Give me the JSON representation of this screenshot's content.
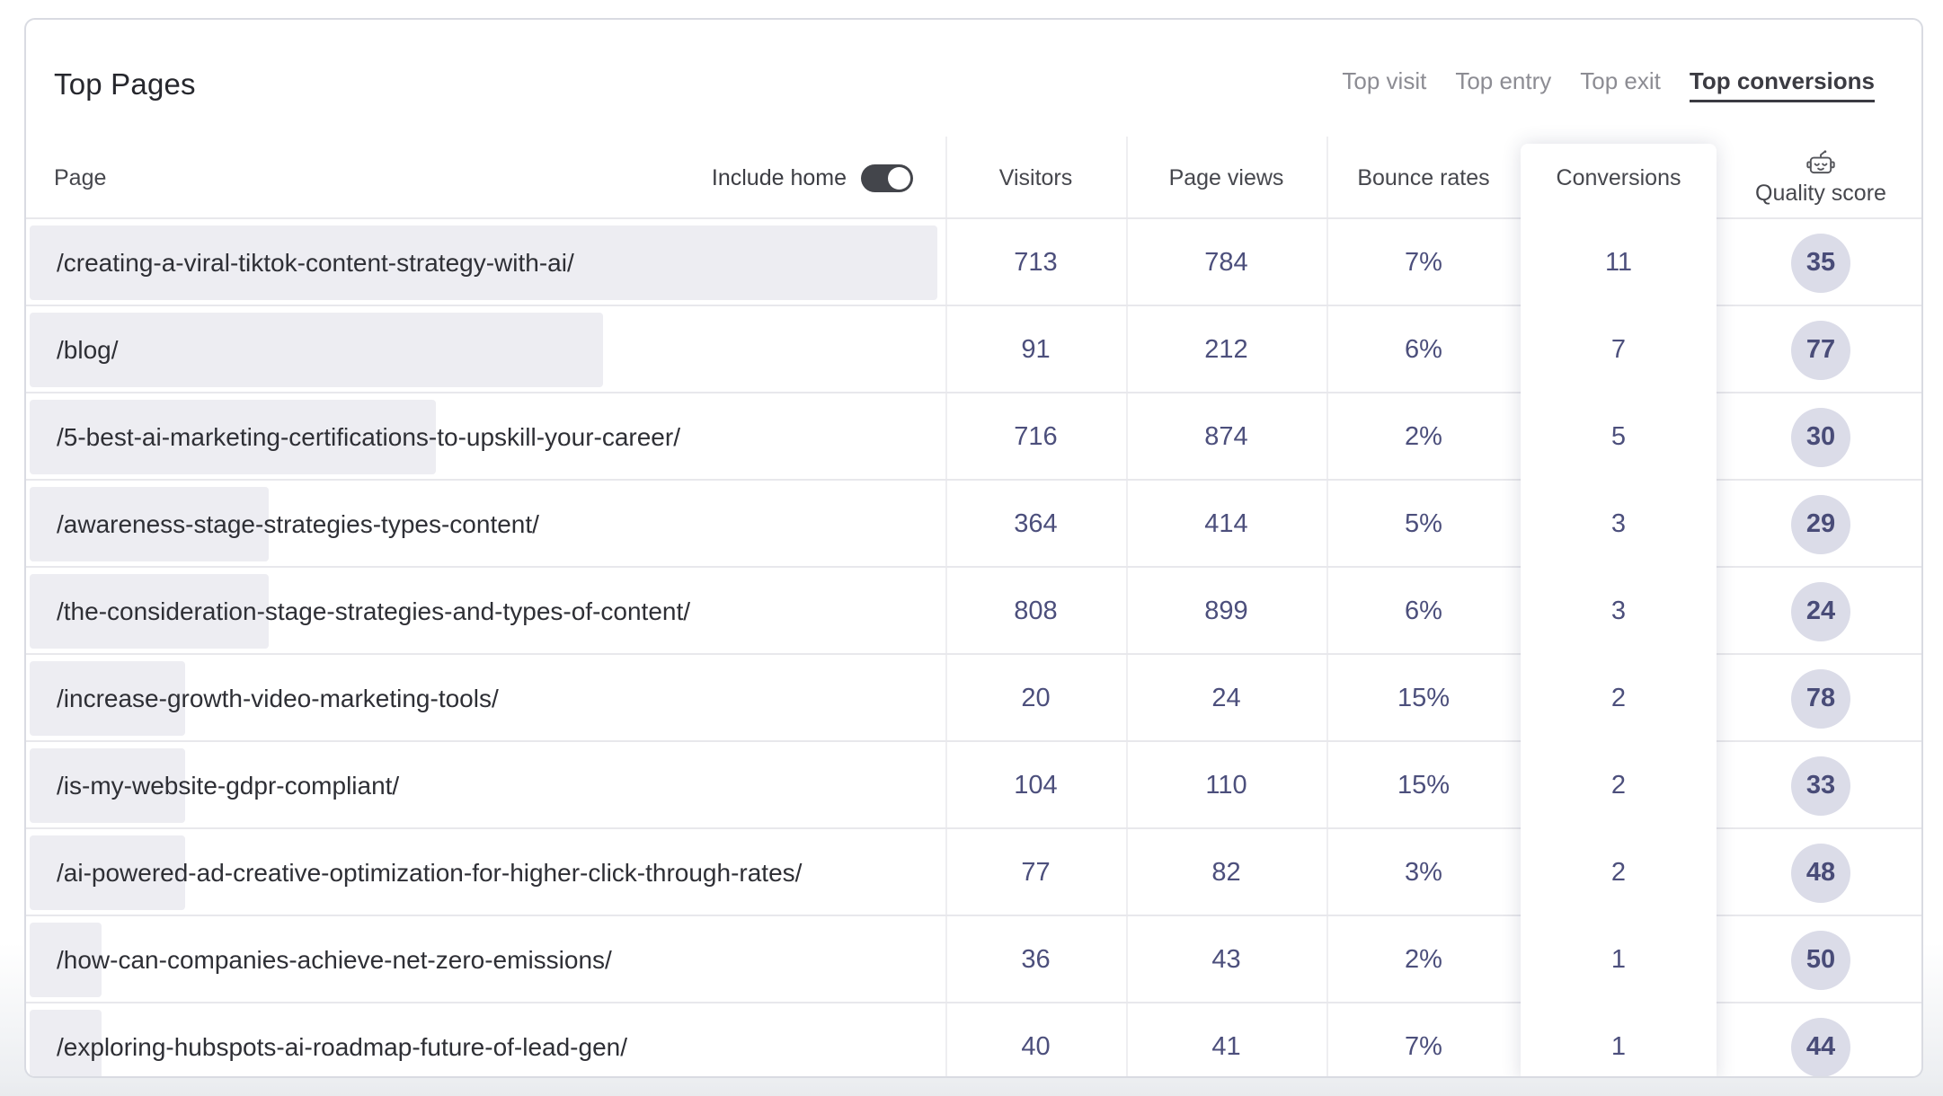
{
  "header": {
    "title": "Top Pages",
    "tabs": [
      {
        "label": "Top visit",
        "active": false
      },
      {
        "label": "Top entry",
        "active": false
      },
      {
        "label": "Top exit",
        "active": false
      },
      {
        "label": "Top conversions",
        "active": true
      }
    ]
  },
  "controls": {
    "include_home_label": "Include home",
    "include_home_on": true
  },
  "table": {
    "columns": [
      "Page",
      "Visitors",
      "Page views",
      "Bounce rates",
      "Conversions",
      "Quality score"
    ],
    "highlighted_column": "Conversions",
    "quality_icon": "robot-icon",
    "rows": [
      {
        "page": "/creating-a-viral-tiktok-content-strategy-with-ai/",
        "visitors": 713,
        "page_views": 784,
        "bounce_rate": "7%",
        "conversions": 11,
        "quality_score": 35
      },
      {
        "page": "/blog/",
        "visitors": 91,
        "page_views": 212,
        "bounce_rate": "6%",
        "conversions": 7,
        "quality_score": 77
      },
      {
        "page": "/5-best-ai-marketing-certifications-to-upskill-your-career/",
        "visitors": 716,
        "page_views": 874,
        "bounce_rate": "2%",
        "conversions": 5,
        "quality_score": 30
      },
      {
        "page": "/awareness-stage-strategies-types-content/",
        "visitors": 364,
        "page_views": 414,
        "bounce_rate": "5%",
        "conversions": 3,
        "quality_score": 29
      },
      {
        "page": "/the-consideration-stage-strategies-and-types-of-content/",
        "visitors": 808,
        "page_views": 899,
        "bounce_rate": "6%",
        "conversions": 3,
        "quality_score": 24
      },
      {
        "page": "/increase-growth-video-marketing-tools/",
        "visitors": 20,
        "page_views": 24,
        "bounce_rate": "15%",
        "conversions": 2,
        "quality_score": 78
      },
      {
        "page": "/is-my-website-gdpr-compliant/",
        "visitors": 104,
        "page_views": 110,
        "bounce_rate": "15%",
        "conversions": 2,
        "quality_score": 33
      },
      {
        "page": "/ai-powered-ad-creative-optimization-for-higher-click-through-rates/",
        "visitors": 77,
        "page_views": 82,
        "bounce_rate": "3%",
        "conversions": 2,
        "quality_score": 48
      },
      {
        "page": "/how-can-companies-achieve-net-zero-emissions/",
        "visitors": 36,
        "page_views": 43,
        "bounce_rate": "2%",
        "conversions": 1,
        "quality_score": 50
      },
      {
        "page": "/exploring-hubspots-ai-roadmap-future-of-lead-gen/",
        "visitors": 40,
        "page_views": 41,
        "bounce_rate": "7%",
        "conversions": 1,
        "quality_score": 44
      }
    ]
  },
  "colors": {
    "accent_indigo": "#4c4f7c",
    "badge_bg": "#dbdce8",
    "bar_bg": "#ededf2",
    "toggle_on_bg": "#43454b",
    "tab_active": "#3b3b42",
    "tab_inactive": "#8c8c93",
    "row_separator": "#e8e8ec",
    "card_border": "#d9dbe2"
  }
}
